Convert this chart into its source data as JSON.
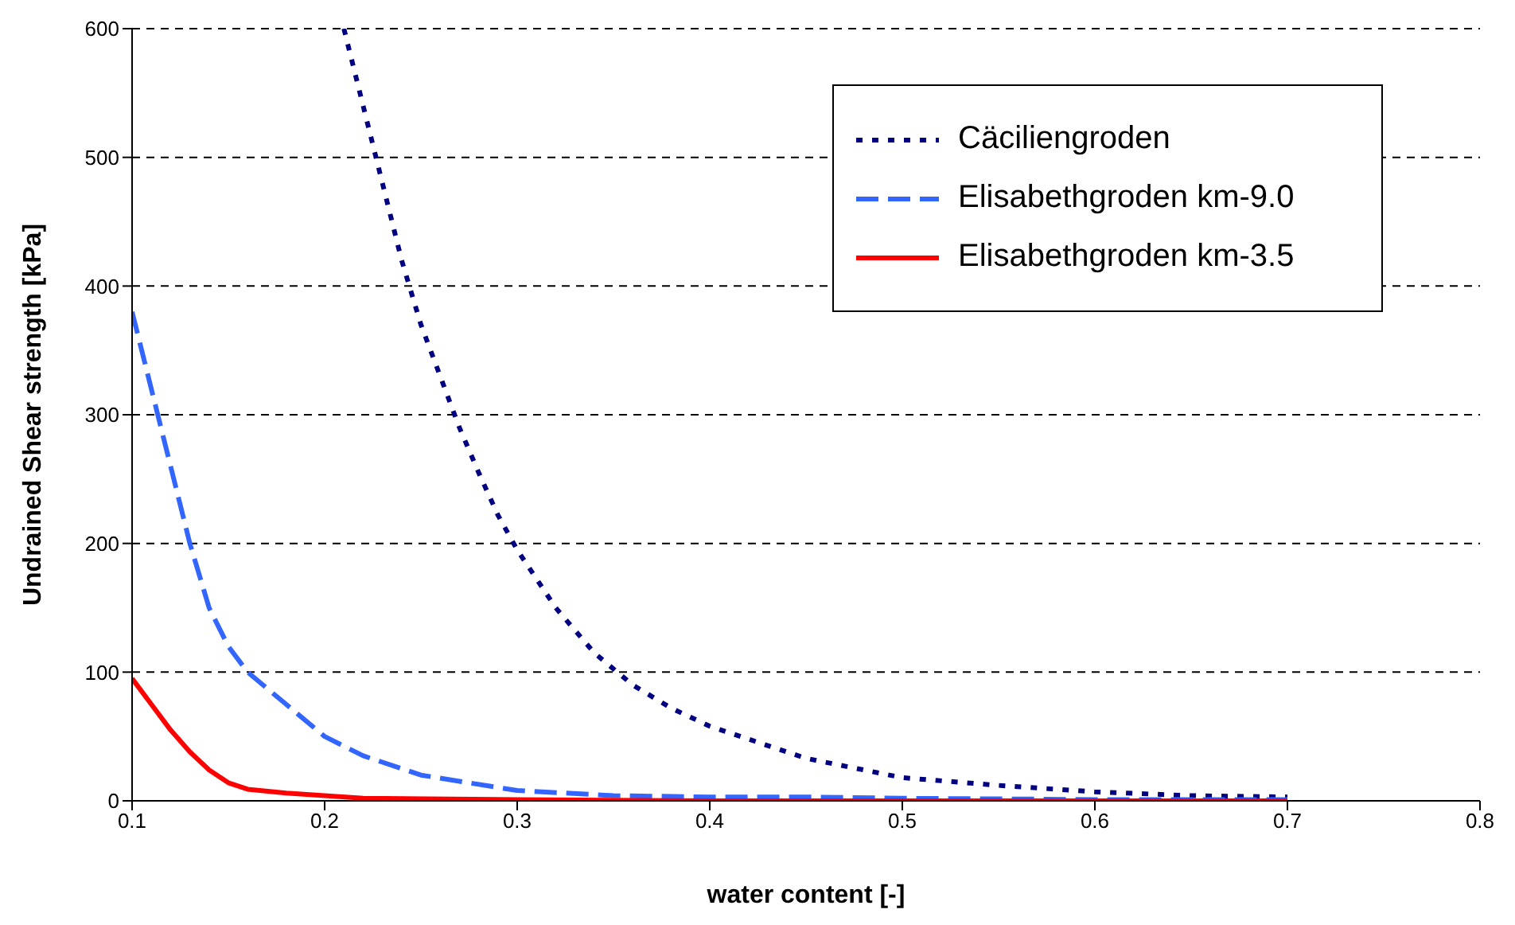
{
  "chart_data": {
    "type": "line",
    "xlabel": "water content [-]",
    "ylabel": "Undrained Shear strength [kPa]",
    "xlim": [
      0.1,
      0.8
    ],
    "xticks": [
      0.1,
      0.2,
      0.3,
      0.4,
      0.5,
      0.6,
      0.7,
      0.8
    ],
    "ylim": [
      0,
      600
    ],
    "yticks": [
      0,
      100,
      200,
      300,
      400,
      500,
      600
    ],
    "grid": "y",
    "legend": "top right",
    "marker": "none",
    "series": [
      {
        "name": "Cäciliengroden",
        "color": "#000080",
        "line_style": "dotted",
        "x": [
          0.21,
          0.22,
          0.23,
          0.24,
          0.25,
          0.26,
          0.27,
          0.28,
          0.29,
          0.3,
          0.32,
          0.34,
          0.36,
          0.38,
          0.4,
          0.45,
          0.5,
          0.55,
          0.6,
          0.65,
          0.7
        ],
        "values": [
          600,
          540,
          480,
          420,
          370,
          330,
          290,
          255,
          222,
          195,
          150,
          115,
          90,
          72,
          58,
          33,
          18,
          12,
          7,
          4,
          3
        ]
      },
      {
        "name": "Elisabethgroden km-9.0",
        "color": "#3366ff",
        "line_style": "dashed",
        "x": [
          0.1,
          0.11,
          0.12,
          0.13,
          0.14,
          0.15,
          0.16,
          0.18,
          0.2,
          0.22,
          0.25,
          0.3,
          0.35,
          0.4,
          0.45,
          0.5,
          0.6,
          0.7
        ],
        "values": [
          380,
          320,
          260,
          200,
          150,
          120,
          100,
          75,
          50,
          35,
          20,
          8,
          4,
          3,
          3,
          2,
          1,
          1
        ]
      },
      {
        "name": "Elisabethgroden km-3.5",
        "color": "#ff0000",
        "line_style": "solid",
        "x": [
          0.1,
          0.11,
          0.12,
          0.13,
          0.14,
          0.15,
          0.16,
          0.18,
          0.2,
          0.22,
          0.3,
          0.4,
          0.5,
          0.6,
          0.7
        ],
        "values": [
          95,
          75,
          55,
          38,
          24,
          14,
          9,
          6,
          4,
          2,
          1,
          0,
          0,
          0,
          0
        ]
      }
    ]
  }
}
